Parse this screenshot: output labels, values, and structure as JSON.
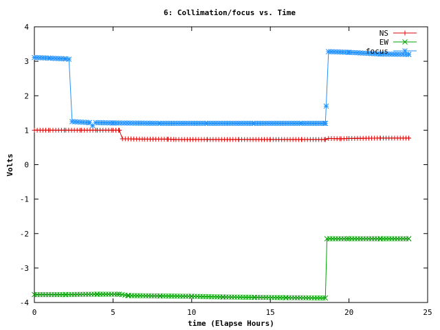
{
  "chart_data": {
    "type": "line",
    "title": "6: Collimation/focus vs. Time",
    "xlabel": "time (Elapse Hours)",
    "ylabel": "Volts",
    "xlim": [
      0,
      25
    ],
    "ylim": [
      -4,
      4
    ],
    "xticks": [
      "0",
      "5",
      "10",
      "15",
      "20",
      "25"
    ],
    "yticks": [
      "-4",
      "-3",
      "-2",
      "-1",
      "0",
      "1",
      "2",
      "3",
      "4"
    ],
    "grid": false,
    "legend_position": "top-right",
    "series": [
      {
        "name": "NS",
        "color": "#dd0000",
        "marker": "plus",
        "points": [
          [
            0,
            1.0
          ],
          [
            1,
            1.0
          ],
          [
            2,
            1.0
          ],
          [
            3,
            1.0
          ],
          [
            4,
            1.0
          ],
          [
            5,
            1.0
          ],
          [
            5.4,
            1.0
          ],
          [
            5.6,
            0.75
          ],
          [
            7,
            0.74
          ],
          [
            8.5,
            0.74
          ],
          [
            9,
            0.73
          ],
          [
            11,
            0.73
          ],
          [
            13,
            0.73
          ],
          [
            15,
            0.73
          ],
          [
            17,
            0.73
          ],
          [
            18.5,
            0.73
          ],
          [
            18.7,
            0.76
          ],
          [
            19.5,
            0.75
          ],
          [
            20,
            0.76
          ],
          [
            22,
            0.77
          ],
          [
            23.8,
            0.77
          ]
        ]
      },
      {
        "name": "EW",
        "color": "#00a000",
        "marker": "cross",
        "points": [
          [
            0,
            -3.77
          ],
          [
            2,
            -3.77
          ],
          [
            4,
            -3.76
          ],
          [
            5.4,
            -3.76
          ],
          [
            6,
            -3.8
          ],
          [
            8,
            -3.81
          ],
          [
            10,
            -3.82
          ],
          [
            12,
            -3.84
          ],
          [
            14,
            -3.85
          ],
          [
            16,
            -3.86
          ],
          [
            18.5,
            -3.87
          ],
          [
            18.6,
            -2.15
          ],
          [
            20,
            -2.15
          ],
          [
            22,
            -2.15
          ],
          [
            23.8,
            -2.15
          ]
        ]
      },
      {
        "name": "focus",
        "color": "#1e90ff",
        "marker": "star",
        "points": [
          [
            0,
            3.11
          ],
          [
            1,
            3.09
          ],
          [
            2,
            3.07
          ],
          [
            2.2,
            3.06
          ],
          [
            2.4,
            1.25
          ],
          [
            3.5,
            1.22
          ],
          [
            3.7,
            1.13
          ],
          [
            3.9,
            1.22
          ],
          [
            5,
            1.21
          ],
          [
            8,
            1.2
          ],
          [
            11,
            1.2
          ],
          [
            14,
            1.2
          ],
          [
            17,
            1.2
          ],
          [
            18.5,
            1.2
          ],
          [
            18.55,
            1.7
          ],
          [
            18.7,
            3.28
          ],
          [
            20,
            3.26
          ],
          [
            22,
            3.21
          ],
          [
            23.8,
            3.2
          ]
        ]
      }
    ]
  }
}
